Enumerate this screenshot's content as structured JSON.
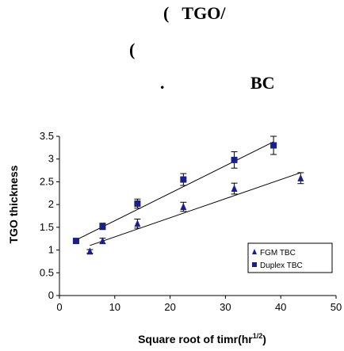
{
  "captions": {
    "line1": "(   TGO/",
    "line2": "(",
    "line3a": ".",
    "line3b": "BC"
  },
  "chart_data": {
    "type": "scatter",
    "xlabel": "Square root of timr(hr",
    "xlabel_sup": "1/2",
    "xlabel_suffix": ")",
    "ylabel": "TGO thickness",
    "xlim": [
      0,
      50
    ],
    "ylim": [
      0,
      3.5
    ],
    "xticks": [
      "0",
      "10",
      "20",
      "30",
      "40",
      "50"
    ],
    "yticks": [
      "0",
      "0.5",
      "1",
      "1.5",
      "2",
      "2.5",
      "3",
      "3.5"
    ],
    "grid": "none",
    "legend_position": "bottom-right",
    "series": [
      {
        "name": "FGM TBC",
        "marker": "triangle",
        "color": "#1a1f8a",
        "x": [
          5.5,
          7.8,
          14.1,
          22.4,
          31.6,
          43.6
        ],
        "y": [
          0.97,
          1.2,
          1.58,
          1.95,
          2.35,
          2.58
        ],
        "err": [
          0.04,
          0.06,
          0.1,
          0.1,
          0.12,
          0.12
        ],
        "fit": {
          "x": [
            5.5,
            43.6
          ],
          "y": [
            1.1,
            2.7
          ]
        }
      },
      {
        "name": "Duplex TBC",
        "marker": "square",
        "color": "#1a1f8a",
        "x": [
          3.0,
          7.8,
          14.1,
          22.4,
          31.6,
          38.7
        ],
        "y": [
          1.2,
          1.52,
          2.02,
          2.55,
          2.98,
          3.3
        ],
        "err": [
          0.04,
          0.07,
          0.1,
          0.13,
          0.18,
          0.2
        ],
        "fit": {
          "x": [
            3.0,
            38.7
          ],
          "y": [
            1.22,
            3.38
          ]
        }
      }
    ]
  }
}
